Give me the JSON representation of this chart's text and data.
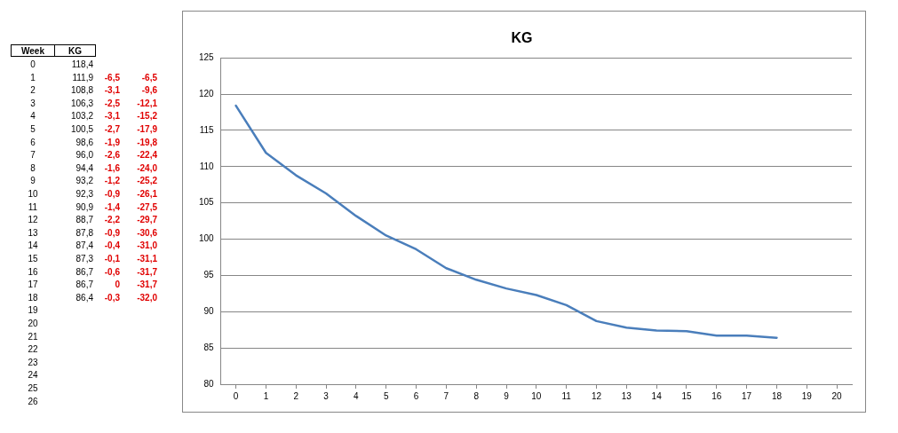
{
  "chart_data": {
    "type": "line",
    "title": "KG",
    "categories": [
      "0",
      "1",
      "2",
      "3",
      "4",
      "5",
      "6",
      "7",
      "8",
      "9",
      "10",
      "11",
      "12",
      "13",
      "14",
      "15",
      "16",
      "17",
      "18",
      "19",
      "20"
    ],
    "values": [
      118.4,
      111.9,
      108.8,
      106.3,
      103.2,
      100.5,
      98.6,
      96.0,
      94.4,
      93.2,
      92.3,
      90.9,
      88.7,
      87.8,
      87.4,
      87.3,
      86.7,
      86.7,
      86.4,
      null,
      null
    ],
    "color": "#4a7ebb",
    "ylim": [
      80,
      125
    ],
    "yticks": [
      80,
      85,
      90,
      95,
      100,
      105,
      110,
      115,
      120,
      125
    ],
    "grid": "y",
    "legend": false,
    "marker": "none",
    "line_style": "solid",
    "annotations": [
      "Week",
      "KG",
      "118,4",
      "111,9",
      "108,8",
      "106,3",
      "103,2",
      "100,5",
      "98,6",
      "96,0",
      "94,4",
      "93,2",
      "92,3",
      "90,9",
      "88,7",
      "87,8",
      "87,4",
      "87,3",
      "86,7",
      "86,7",
      "86,4",
      "-6,5",
      "-6,5",
      "-3,1",
      "-9,6",
      "-2,5",
      "-12,1",
      "-3,1",
      "-15,2",
      "-2,7",
      "-17,9",
      "-1,9",
      "-19,8",
      "-2,6",
      "-22,4",
      "-1,6",
      "-24,0",
      "-1,2",
      "-25,2",
      "-0,9",
      "-26,1",
      "-1,4",
      "-27,5",
      "-2,2",
      "-29,7",
      "-0,9",
      "-30,6",
      "-0,4",
      "-31,0",
      "-0,1",
      "-31,1",
      "-0,6",
      "-31,7",
      "0",
      "-31,7",
      "-0,3",
      "-32,0",
      "21",
      "22",
      "23",
      "24",
      "25",
      "26"
    ]
  }
}
